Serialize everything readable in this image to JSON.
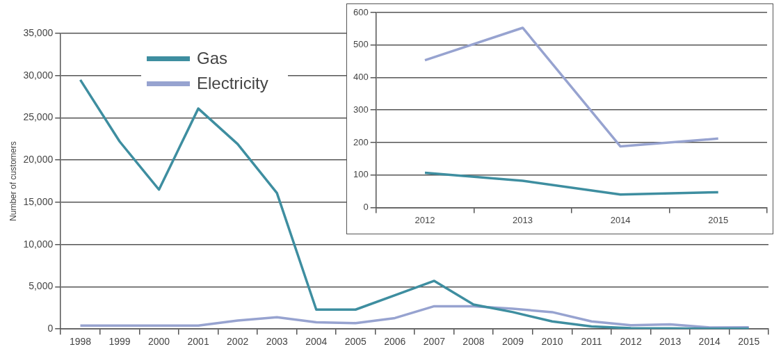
{
  "chart_data": [
    {
      "type": "line",
      "ylabel": "Number of customers",
      "categories": [
        "1998",
        "1999",
        "2000",
        "2001",
        "2002",
        "2003",
        "2004",
        "2005",
        "2006",
        "2007",
        "2008",
        "2009",
        "2010",
        "2011",
        "2012",
        "2013",
        "2014",
        "2015"
      ],
      "ylim": [
        0,
        35000
      ],
      "yticks": [
        {
          "value": 0,
          "label": "0"
        },
        {
          "value": 5000,
          "label": "5,000"
        },
        {
          "value": 10000,
          "label": "10,000"
        },
        {
          "value": 15000,
          "label": "15,000"
        },
        {
          "value": 20000,
          "label": "20,000"
        },
        {
          "value": 25000,
          "label": "25,000"
        },
        {
          "value": 30000,
          "label": "30,000"
        },
        {
          "value": 35000,
          "label": "35,000"
        }
      ],
      "grid": "y",
      "legend": "top left",
      "marker": "none",
      "line_style": "solid",
      "series": [
        {
          "name": "Gas",
          "color": "#3e8ea0",
          "values": [
            29500,
            22200,
            16500,
            26100,
            21900,
            16100,
            2300,
            2300,
            4000,
            5700,
            2900,
            2000,
            900,
            300,
            107,
            82,
            40,
            47
          ]
        },
        {
          "name": "Electricity",
          "color": "#97a3d0",
          "values": [
            400,
            400,
            400,
            400,
            1000,
            1400,
            800,
            700,
            1300,
            2700,
            2700,
            2400,
            2000,
            900,
            453,
            553,
            188,
            212
          ]
        }
      ]
    },
    {
      "type": "line",
      "categories": [
        "2012",
        "2013",
        "2014",
        "2015"
      ],
      "ylim": [
        0,
        600
      ],
      "yticks": [
        0,
        100,
        200,
        300,
        400,
        500,
        600
      ],
      "grid": "y",
      "legend": false,
      "marker": "none",
      "line_style": "solid",
      "series": [
        {
          "color": "#97a3d0",
          "values": [
            453,
            553,
            188,
            212
          ]
        },
        {
          "color": "#3e8ea0",
          "values": [
            107,
            82,
            40,
            47
          ]
        }
      ]
    }
  ]
}
